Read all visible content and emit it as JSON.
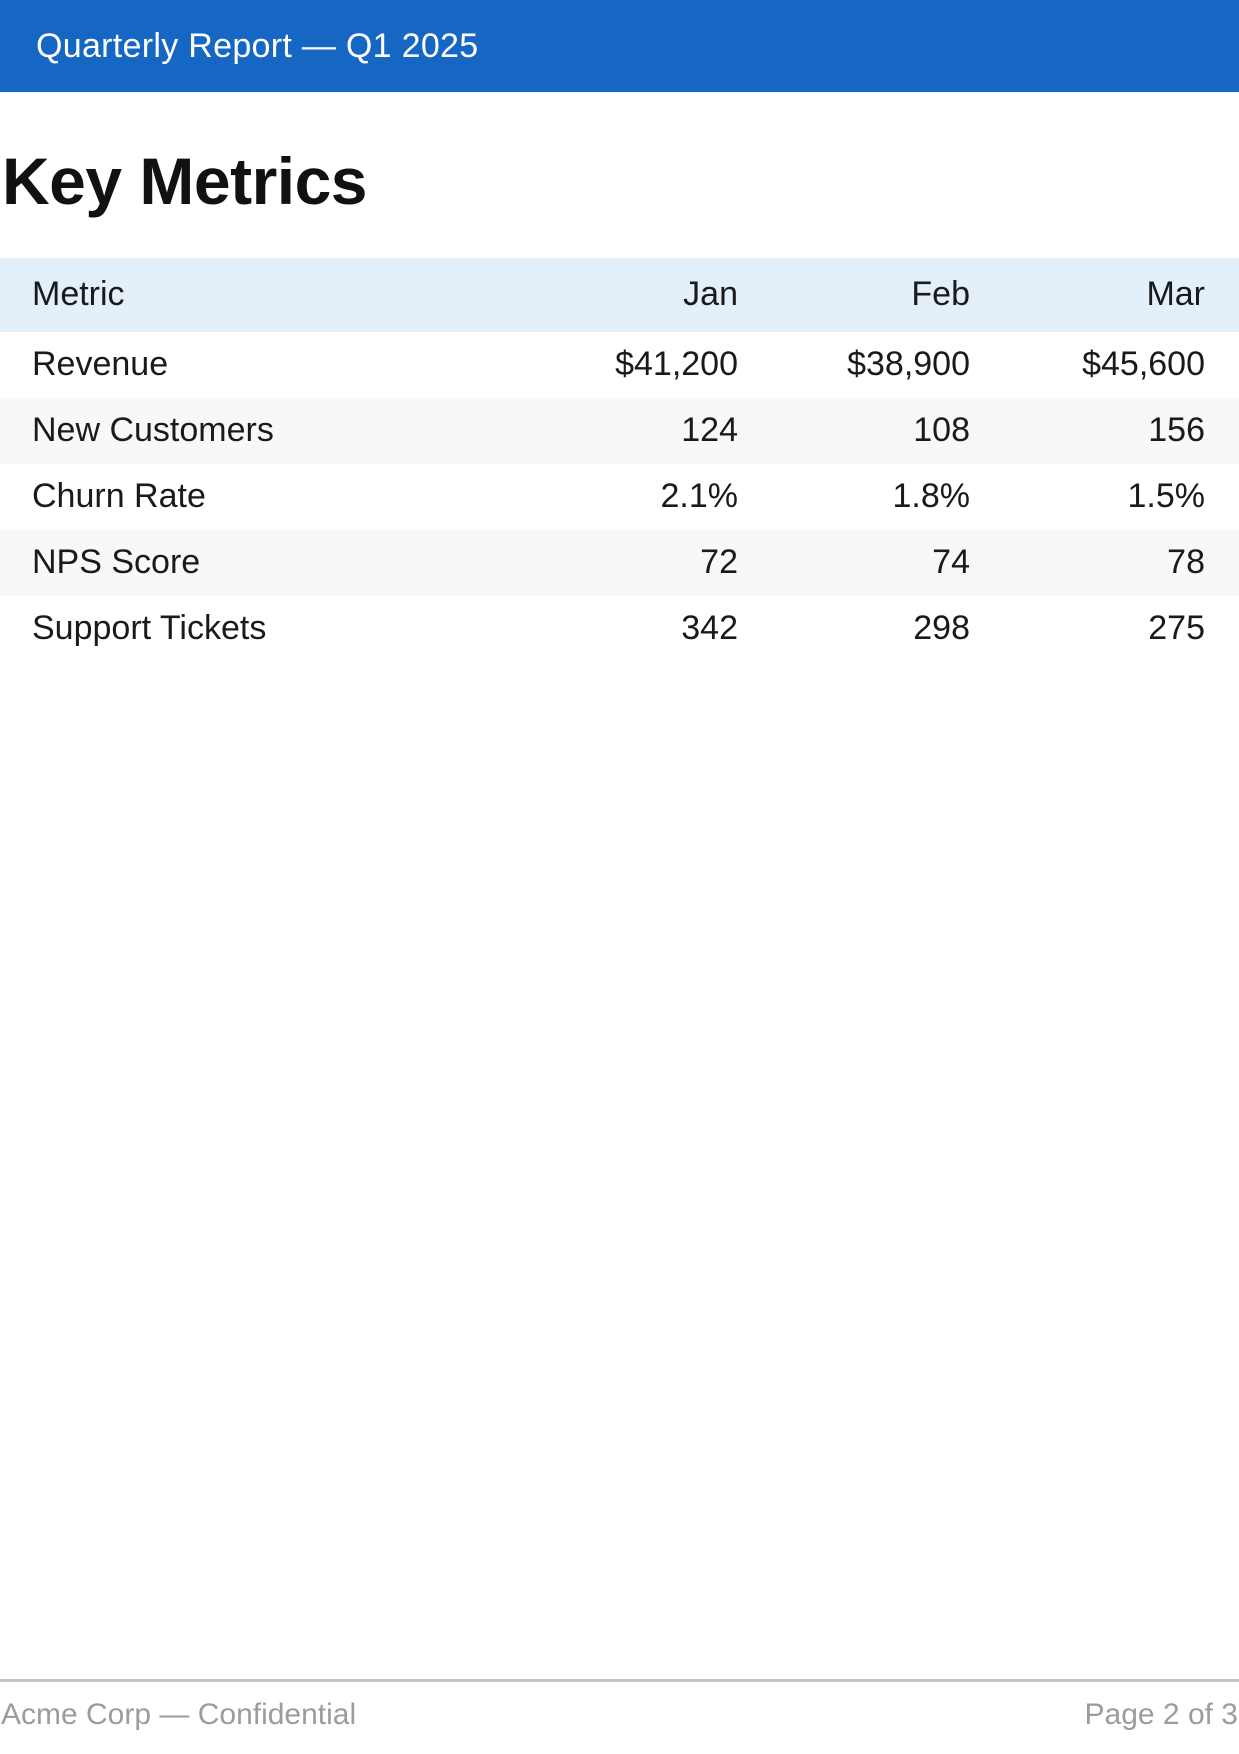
{
  "topbar": {
    "title": "Quarterly Report — Q1 2025",
    "bg_color": "#1666c4",
    "text_color": "#ffffff"
  },
  "page": {
    "heading": "Key Metrics"
  },
  "table": {
    "header_bg_color": "#e3f0fa",
    "zebra_bg_color": "#f8f8f8",
    "columns": [
      "Metric",
      "Jan",
      "Feb",
      "Mar"
    ],
    "rows": [
      {
        "metric": "Revenue",
        "jan": "$41,200",
        "feb": "$38,900",
        "mar": "$45,600"
      },
      {
        "metric": "New Customers",
        "jan": "124",
        "feb": "108",
        "mar": "156"
      },
      {
        "metric": "Churn Rate",
        "jan": "2.1%",
        "feb": "1.8%",
        "mar": "1.5%"
      },
      {
        "metric": "NPS Score",
        "jan": "72",
        "feb": "74",
        "mar": "78"
      },
      {
        "metric": "Support Tickets",
        "jan": "342",
        "feb": "298",
        "mar": "275"
      }
    ]
  },
  "footer": {
    "left": "Acme Corp — Confidential",
    "right": "Page 2 of 3",
    "text_color": "#9c9c9c"
  }
}
